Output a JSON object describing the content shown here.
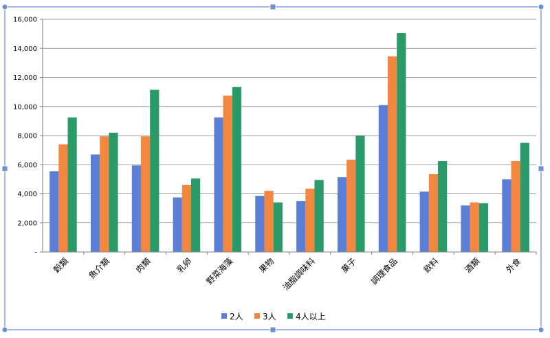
{
  "colors": {
    "frame": "#4472c4",
    "handle": "#6c8ed6",
    "grid": "#808080",
    "axis": "#808080"
  },
  "chart_data": {
    "type": "bar",
    "categories": [
      "穀類",
      "魚介類",
      "肉類",
      "乳卵",
      "野菜海藻",
      "果物",
      "油脂調味料",
      "菓子",
      "調理食品",
      "飲料",
      "酒類",
      "外食"
    ],
    "series": [
      {
        "name": "2人",
        "color": "#5b7fd6",
        "values": [
          5550,
          6700,
          5950,
          3750,
          9250,
          3850,
          3500,
          5150,
          10100,
          4150,
          3200,
          5000
        ]
      },
      {
        "name": "3人",
        "color": "#f4873f",
        "values": [
          7400,
          7950,
          7950,
          4600,
          10750,
          4200,
          4350,
          6350,
          13450,
          5350,
          3400,
          6250
        ]
      },
      {
        "name": "4人以上",
        "color": "#2a9a69",
        "values": [
          9250,
          8200,
          11150,
          5050,
          11350,
          3400,
          4950,
          8000,
          15050,
          6250,
          3350,
          7500
        ]
      }
    ],
    "y_ticks": [
      "-",
      "2,000",
      "4,000",
      "6,000",
      "8,000",
      "10,000",
      "12,000",
      "14,000",
      "16,000"
    ],
    "ylim": [
      0,
      16000
    ],
    "grid": true,
    "legend_position": "bottom",
    "title": "",
    "xlabel": "",
    "ylabel": ""
  }
}
